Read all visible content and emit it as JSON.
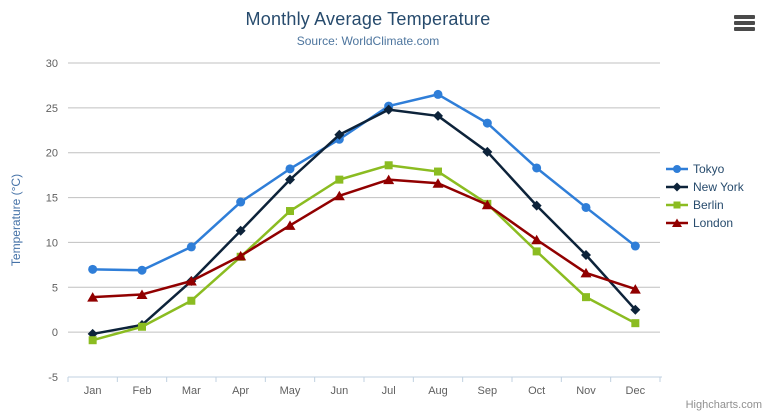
{
  "chart": {
    "title": "Monthly Average Temperature",
    "subtitle": "Source: WorldClimate.com",
    "y_axis_title": "Temperature (°C)",
    "credits": "Highcharts.com"
  },
  "colors": {
    "title_text": "#274b6d",
    "subtitle_text": "#4d759e",
    "axis_label": "#606060",
    "y_axis_title_text": "#4572A7",
    "legend_text": "#274b6d",
    "gridline": "#C0C0C0",
    "axis_line": "#C0D0E0",
    "credits_text": "#909090",
    "menu_icon": "#4a4a4a"
  },
  "chart_data": {
    "type": "line",
    "title": "Monthly Average Temperature",
    "subtitle": "Source: WorldClimate.com",
    "xlabel": "",
    "ylabel": "Temperature (°C)",
    "categories": [
      "Jan",
      "Feb",
      "Mar",
      "Apr",
      "May",
      "Jun",
      "Jul",
      "Aug",
      "Sep",
      "Oct",
      "Nov",
      "Dec"
    ],
    "series": [
      {
        "name": "Tokyo",
        "color": "#2f7ed8",
        "marker": "circle",
        "values": [
          7.0,
          6.9,
          9.5,
          14.5,
          18.2,
          21.5,
          25.2,
          26.5,
          23.3,
          18.3,
          13.9,
          9.6
        ]
      },
      {
        "name": "New York",
        "color": "#0d233a",
        "marker": "diamond",
        "values": [
          -0.2,
          0.8,
          5.7,
          11.3,
          17.0,
          22.0,
          24.8,
          24.1,
          20.1,
          14.1,
          8.6,
          2.5
        ]
      },
      {
        "name": "Berlin",
        "color": "#8bbc21",
        "marker": "square",
        "values": [
          -0.9,
          0.6,
          3.5,
          8.4,
          13.5,
          17.0,
          18.6,
          17.9,
          14.3,
          9.0,
          3.9,
          1.0
        ]
      },
      {
        "name": "London",
        "color": "#910000",
        "marker": "triangle",
        "values": [
          3.9,
          4.2,
          5.7,
          8.5,
          11.9,
          15.2,
          17.0,
          16.6,
          14.2,
          10.3,
          6.6,
          4.8
        ]
      }
    ],
    "ylim": [
      -5,
      30
    ],
    "y_tick_step": 5,
    "grid": true,
    "legend_position": "right"
  }
}
